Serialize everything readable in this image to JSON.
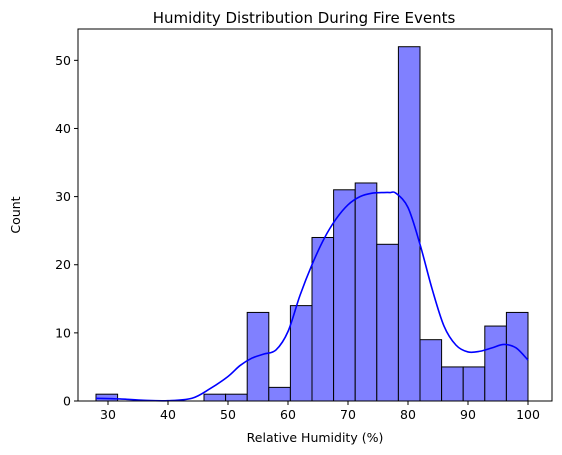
{
  "chart_data": {
    "type": "histogram",
    "title": "Humidity Distribution During Fire Events",
    "xlabel": "Relative Humidity (%)",
    "ylabel": "Count",
    "xlim": [
      25,
      104
    ],
    "ylim": [
      0,
      54.6
    ],
    "x_ticks": [
      30,
      40,
      50,
      60,
      70,
      80,
      90,
      100
    ],
    "y_ticks": [
      0,
      10,
      20,
      30,
      40,
      50
    ],
    "grid": false,
    "bar_fill": "#8080ff",
    "bar_edge": "#000000",
    "kde_color": "#0000ff",
    "bins": [
      {
        "x0": 28.0,
        "x1": 31.6,
        "count": 1
      },
      {
        "x0": 31.6,
        "x1": 35.2,
        "count": 0
      },
      {
        "x0": 35.2,
        "x1": 38.8,
        "count": 0
      },
      {
        "x0": 38.8,
        "x1": 42.4,
        "count": 0
      },
      {
        "x0": 42.4,
        "x1": 46.0,
        "count": 0
      },
      {
        "x0": 46.0,
        "x1": 49.6,
        "count": 1
      },
      {
        "x0": 49.6,
        "x1": 53.2,
        "count": 1
      },
      {
        "x0": 53.2,
        "x1": 56.8,
        "count": 13
      },
      {
        "x0": 56.8,
        "x1": 60.4,
        "count": 2
      },
      {
        "x0": 60.4,
        "x1": 64.0,
        "count": 14
      },
      {
        "x0": 64.0,
        "x1": 67.6,
        "count": 24
      },
      {
        "x0": 67.6,
        "x1": 71.2,
        "count": 31
      },
      {
        "x0": 71.2,
        "x1": 74.8,
        "count": 32
      },
      {
        "x0": 74.8,
        "x1": 78.4,
        "count": 23
      },
      {
        "x0": 78.4,
        "x1": 82.0,
        "count": 52
      },
      {
        "x0": 82.0,
        "x1": 85.6,
        "count": 9
      },
      {
        "x0": 85.6,
        "x1": 89.2,
        "count": 5
      },
      {
        "x0": 89.2,
        "x1": 92.8,
        "count": 5
      },
      {
        "x0": 92.8,
        "x1": 96.4,
        "count": 11
      },
      {
        "x0": 96.4,
        "x1": 100.0,
        "count": 13
      }
    ],
    "kde": {
      "x": [
        28,
        32,
        36,
        40,
        44,
        47,
        50,
        52,
        54,
        56,
        58,
        60,
        62,
        64,
        66,
        68,
        70,
        72,
        74,
        76,
        77,
        78,
        80,
        82,
        84,
        86,
        88,
        90,
        92,
        94,
        96,
        98,
        100
      ],
      "y": [
        0.4,
        0.3,
        0.1,
        0.05,
        0.4,
        1.8,
        3.6,
        5.2,
        6.3,
        6.9,
        7.5,
        10.2,
        15.5,
        20.0,
        23.8,
        26.7,
        28.8,
        30.0,
        30.5,
        30.6,
        30.6,
        30.5,
        28.4,
        23.0,
        16.5,
        11.0,
        8.2,
        7.2,
        7.3,
        7.8,
        8.3,
        7.8,
        6.0
      ]
    }
  }
}
